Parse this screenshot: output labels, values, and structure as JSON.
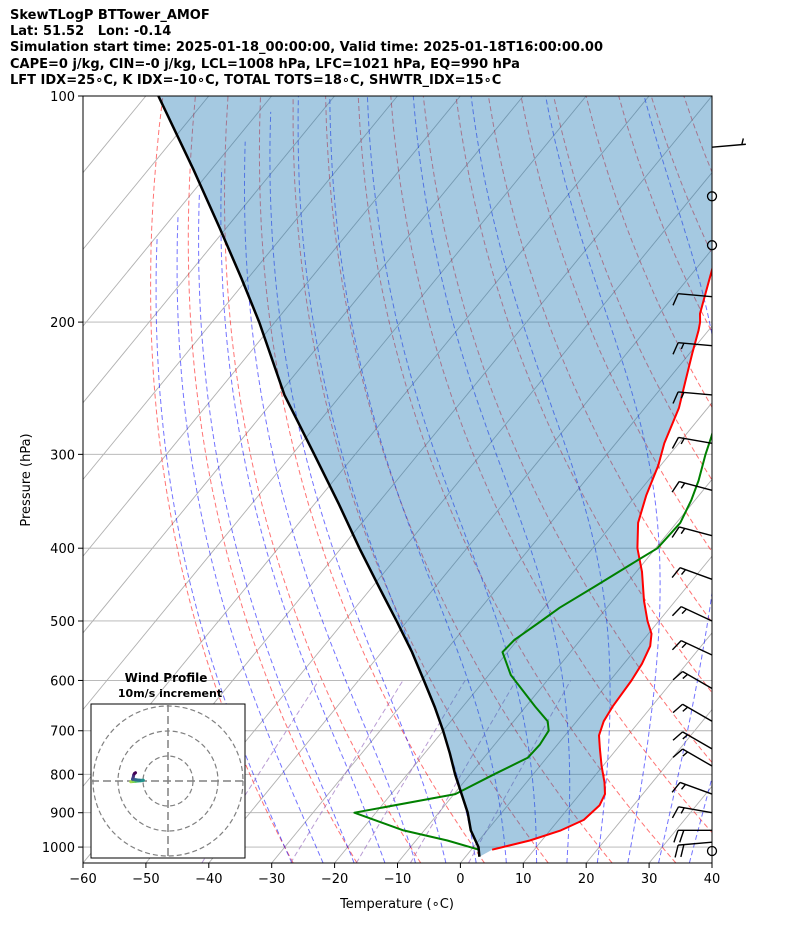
{
  "header": {
    "line1": "SkewTLogP BTTower_AMOF",
    "line2": "Lat: 51.52   Lon: -0.14",
    "line3": "Simulation start time: 2025-01-18_00:00:00, Valid time: 2025-01-18T16:00:00.00",
    "line4": "CAPE=0 j/kg, CIN=-0 j/kg, LCL=1008 hPa, LFC=1021 hPa, EQ=990 hPa",
    "line5": "LFT IDX=25∘C, K IDX=-10∘C, TOTAL TOTS=18∘C, SHWTR_IDX=15∘C"
  },
  "chart_data": {
    "type": "line",
    "title": "SkewTLogP BTTower_AMOF",
    "xlabel": "Temperature (∘C)",
    "ylabel": "Pressure (hPa)",
    "xlim": [
      -60,
      40
    ],
    "ylim": [
      1050,
      100
    ],
    "x_ticks": [
      -60,
      -50,
      -40,
      -30,
      -20,
      -10,
      0,
      10,
      20,
      30,
      40
    ],
    "x_tick_labels": [
      "−60",
      "−50",
      "−40",
      "−30",
      "−20",
      "−10",
      "0",
      "10",
      "20",
      "30",
      "40"
    ],
    "y_ticks": [
      1000,
      900,
      800,
      700,
      600,
      500,
      400,
      300,
      200,
      100
    ],
    "colors": {
      "temperature": "#ff0000",
      "dewpoint": "#008000",
      "parcel": "#000000",
      "shade": "#1f77b4",
      "dry_adiabat": "#ff0000",
      "moist_adiabat": "#0000ff",
      "mixing_ratio": "#9467bd",
      "wind_series": "#a6d84a"
    },
    "series": [
      {
        "name": "Temperature",
        "points": [
          [
            3.3,
            1008
          ],
          [
            8.1,
            980
          ],
          [
            11.7,
            950
          ],
          [
            14.0,
            920
          ],
          [
            14.6,
            880
          ],
          [
            14.0,
            850
          ],
          [
            12.4,
            820
          ],
          [
            9.8,
            780
          ],
          [
            7.3,
            740
          ],
          [
            5.4,
            710
          ],
          [
            4.3,
            680
          ],
          [
            3.8,
            650
          ],
          [
            3.4,
            600
          ],
          [
            2.9,
            570
          ],
          [
            1.9,
            540
          ],
          [
            0.5,
            520
          ],
          [
            -1.8,
            500
          ],
          [
            -5.0,
            470
          ],
          [
            -9.1,
            430
          ],
          [
            -12.9,
            400
          ],
          [
            -16.1,
            370
          ],
          [
            -18.4,
            340
          ],
          [
            -20.4,
            310
          ],
          [
            -22.3,
            290
          ],
          [
            -24.6,
            260
          ],
          [
            -27.0,
            240
          ],
          [
            -29.6,
            220
          ],
          [
            -31.6,
            205
          ],
          [
            -32.4,
            200
          ],
          [
            -33.5,
            195
          ],
          [
            -35.0,
            185
          ],
          [
            -37.4,
            170
          ],
          [
            -40.3,
            155
          ],
          [
            -42.5,
            145
          ],
          [
            -45.2,
            135
          ],
          [
            -47.5,
            125
          ],
          [
            -49.2,
            115
          ],
          [
            -50.3,
            108
          ],
          [
            -51.2,
            100
          ]
        ]
      },
      {
        "name": "Dewpoint",
        "points": [
          [
            1.2,
            1008
          ],
          [
            -5.0,
            980
          ],
          [
            -13.3,
            950
          ],
          [
            -23.4,
            900
          ],
          [
            -9.8,
            850
          ],
          [
            -6.2,
            800
          ],
          [
            -3.0,
            760
          ],
          [
            -2.8,
            730
          ],
          [
            -3.2,
            700
          ],
          [
            -4.6,
            680
          ],
          [
            -8.5,
            650
          ],
          [
            -16.5,
            590
          ],
          [
            -20.8,
            550
          ],
          [
            -20.5,
            530
          ],
          [
            -18.7,
            500
          ],
          [
            -17.5,
            480
          ],
          [
            -14.7,
            450
          ],
          [
            -11.8,
            420
          ],
          [
            -9.7,
            400
          ],
          [
            -9.4,
            370
          ],
          [
            -10.6,
            345
          ],
          [
            -12.0,
            325
          ],
          [
            -14.3,
            300
          ],
          [
            -15.6,
            285
          ],
          [
            -17.6,
            265
          ],
          [
            -20.1,
            250
          ],
          [
            -22.0,
            240
          ],
          [
            -23.8,
            230
          ],
          [
            -24.8,
            220
          ],
          [
            -26.0,
            210
          ],
          [
            -26.6,
            200
          ],
          [
            -26.9,
            190
          ],
          [
            -27.3,
            180
          ],
          [
            -28.8,
            170
          ],
          [
            -31.0,
            160
          ],
          [
            -33.6,
            150
          ],
          [
            -36.3,
            140
          ],
          [
            -40.0,
            130
          ],
          [
            -45.0,
            118
          ],
          [
            -50.0,
            107
          ],
          [
            -52.8,
            100
          ]
        ]
      },
      {
        "name": "Parcel",
        "points": [
          [
            2.2,
            1030
          ],
          [
            0.8,
            1000
          ],
          [
            -2.6,
            950
          ],
          [
            -5.4,
            900
          ],
          [
            -8.8,
            850
          ],
          [
            -12.4,
            800
          ],
          [
            -16.0,
            750
          ],
          [
            -20.0,
            700
          ],
          [
            -24.5,
            650
          ],
          [
            -29.6,
            600
          ],
          [
            -35.2,
            550
          ],
          [
            -41.7,
            500
          ],
          [
            -49.0,
            450
          ],
          [
            -57.1,
            400
          ],
          [
            -66.0,
            350
          ],
          [
            -76.5,
            300
          ],
          [
            -89.0,
            250
          ],
          [
            -102.5,
            200
          ],
          [
            -111.0,
            175
          ],
          [
            -121.0,
            150
          ],
          [
            -133.0,
            125
          ],
          [
            -148.0,
            100
          ]
        ]
      }
    ],
    "wind_barbs": [
      {
        "pressure": 1012,
        "speed_kt": 0,
        "direction_deg": 0
      },
      {
        "pressure": 985,
        "speed_kt": 20,
        "direction_deg": 265
      },
      {
        "pressure": 950,
        "speed_kt": 20,
        "direction_deg": 270
      },
      {
        "pressure": 900,
        "speed_kt": 15,
        "direction_deg": 280
      },
      {
        "pressure": 850,
        "speed_kt": 15,
        "direction_deg": 290
      },
      {
        "pressure": 780,
        "speed_kt": 15,
        "direction_deg": 300
      },
      {
        "pressure": 740,
        "speed_kt": 15,
        "direction_deg": 300
      },
      {
        "pressure": 680,
        "speed_kt": 15,
        "direction_deg": 300
      },
      {
        "pressure": 615,
        "speed_kt": 15,
        "direction_deg": 300
      },
      {
        "pressure": 555,
        "speed_kt": 15,
        "direction_deg": 295
      },
      {
        "pressure": 500,
        "speed_kt": 15,
        "direction_deg": 295
      },
      {
        "pressure": 440,
        "speed_kt": 15,
        "direction_deg": 290
      },
      {
        "pressure": 385,
        "speed_kt": 15,
        "direction_deg": 285
      },
      {
        "pressure": 335,
        "speed_kt": 15,
        "direction_deg": 285
      },
      {
        "pressure": 290,
        "speed_kt": 15,
        "direction_deg": 280
      },
      {
        "pressure": 250,
        "speed_kt": 15,
        "direction_deg": 275
      },
      {
        "pressure": 215,
        "speed_kt": 15,
        "direction_deg": 275
      },
      {
        "pressure": 185,
        "speed_kt": 10,
        "direction_deg": 275
      },
      {
        "pressure": 158,
        "speed_kt": 0,
        "direction_deg": 0
      },
      {
        "pressure": 136,
        "speed_kt": 0,
        "direction_deg": 0
      },
      {
        "pressure": 117,
        "speed_kt": 5,
        "direction_deg": 85
      }
    ],
    "inset": {
      "title": "Wind Profile",
      "subtitle": "10m/s increment",
      "rings_ms": [
        10,
        20,
        30
      ],
      "hodograph_uv": [
        [
          -4.5,
          -0.3
        ],
        [
          -3.5,
          -0.2
        ],
        [
          -2.5,
          -0.1
        ],
        [
          -1.5,
          0.0
        ],
        [
          -0.5,
          0.1
        ],
        [
          0.5,
          0.3
        ],
        [
          -1.0,
          0.3
        ],
        [
          -2.5,
          0.5
        ],
        [
          -3.8,
          0.7
        ],
        [
          -3.5,
          1.5
        ],
        [
          -3.3,
          2.5
        ],
        [
          -3.0,
          3.0
        ],
        [
          -2.6,
          3.3
        ]
      ]
    }
  }
}
